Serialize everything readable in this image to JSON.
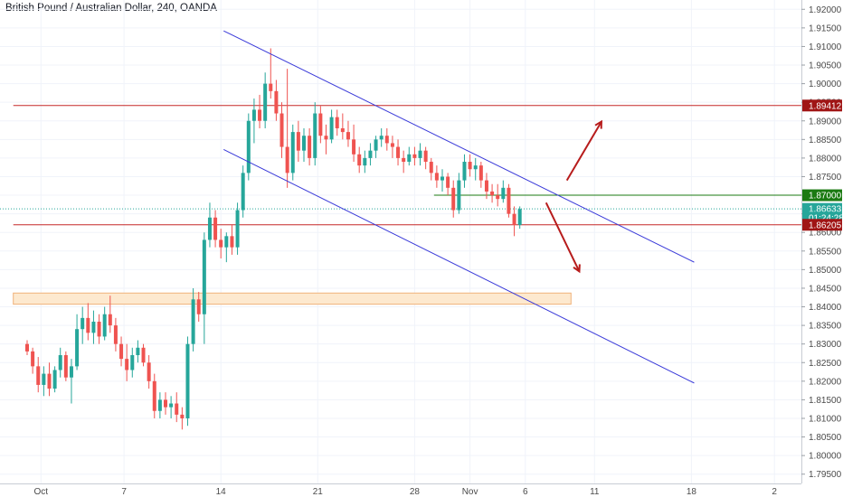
{
  "header": {
    "title": "British Pound / Australian Dollar, 240, OANDA"
  },
  "colors": {
    "up": "#26a69a",
    "down": "#ef5350",
    "channel": "#3b3bd9",
    "resistance": "#c62828",
    "support_green": "#1b7a12",
    "zone_fill": "#fde9cf",
    "zone_stroke": "#f0b27a",
    "arrow": "#b71c1c",
    "grid": "#f0f3fa",
    "axis_text": "#4a4a4a"
  },
  "chart_data": {
    "type": "candlestick",
    "symbol": "GBPAUD",
    "interval": "240",
    "source": "OANDA",
    "ylim": [
      1.7925,
      1.9225
    ],
    "y_ticks": [
      "1.92000",
      "1.91500",
      "1.91000",
      "1.90500",
      "1.90000",
      "1.89500",
      "1.89000",
      "1.88500",
      "1.88000",
      "1.87500",
      "1.87000",
      "1.86500",
      "1.86000",
      "1.85500",
      "1.85000",
      "1.84500",
      "1.84000",
      "1.83500",
      "1.83000",
      "1.82500",
      "1.82000",
      "1.81500",
      "1.81000",
      "1.80500",
      "1.80000",
      "1.79500"
    ],
    "x_ticks": [
      {
        "label": "Oct",
        "day": 1
      },
      {
        "label": "7",
        "day": 7
      },
      {
        "label": "14",
        "day": 14
      },
      {
        "label": "21",
        "day": 21
      },
      {
        "label": "28",
        "day": 28
      },
      {
        "label": "Nov",
        "day": 32
      },
      {
        "label": "6",
        "day": 36
      },
      {
        "label": "11",
        "day": 41
      },
      {
        "label": "18",
        "day": 48
      },
      {
        "label": "2",
        "day": 54
      }
    ],
    "price_labels": [
      {
        "value": 1.89412,
        "text": "1.89412",
        "color": "#a01515"
      },
      {
        "value": 1.87,
        "text": "1.87000",
        "color": "#1b7a12"
      },
      {
        "value": 1.86633,
        "text": "1.86633",
        "color": "#26a69a"
      },
      {
        "value": 1.864,
        "text": "01:24:28",
        "color": "#26a69a"
      },
      {
        "value": 1.86205,
        "text": "1.86205",
        "color": "#a01515"
      }
    ],
    "h_lines": [
      {
        "value": 1.89412,
        "color": "#c62828",
        "from_day": -1
      },
      {
        "value": 1.86205,
        "color": "#c62828",
        "from_day": -1
      },
      {
        "value": 1.87,
        "color": "#1b7a12",
        "from_day": 29.4
      }
    ],
    "current_price": 1.86633,
    "zone": {
      "from_day": -1,
      "to_day": 39.3,
      "low": 1.8407,
      "high": 1.8437
    },
    "channel_upper": [
      [
        14.2,
        1.9142
      ],
      [
        48.2,
        1.852
      ]
    ],
    "channel_lower": [
      [
        14.2,
        1.8823
      ],
      [
        48.2,
        1.8195
      ]
    ],
    "arrows": [
      {
        "from": [
          39.0,
          1.874
        ],
        "to": [
          41.5,
          1.8898
        ]
      },
      {
        "from": [
          37.5,
          1.868
        ],
        "to": [
          39.9,
          1.8495
        ]
      }
    ],
    "candles": [
      {
        "day": 0.0,
        "o": 1.83,
        "h": 1.831,
        "l": 1.827,
        "c": 1.828
      },
      {
        "day": 0.4,
        "o": 1.828,
        "h": 1.829,
        "l": 1.822,
        "c": 1.824
      },
      {
        "day": 0.8,
        "o": 1.824,
        "h": 1.8265,
        "l": 1.817,
        "c": 1.819
      },
      {
        "day": 1.2,
        "o": 1.819,
        "h": 1.824,
        "l": 1.816,
        "c": 1.822
      },
      {
        "day": 1.6,
        "o": 1.822,
        "h": 1.825,
        "l": 1.816,
        "c": 1.818
      },
      {
        "day": 2.0,
        "o": 1.818,
        "h": 1.824,
        "l": 1.817,
        "c": 1.823
      },
      {
        "day": 2.4,
        "o": 1.823,
        "h": 1.829,
        "l": 1.821,
        "c": 1.827
      },
      {
        "day": 2.8,
        "o": 1.827,
        "h": 1.828,
        "l": 1.82,
        "c": 1.821
      },
      {
        "day": 3.2,
        "o": 1.821,
        "h": 1.826,
        "l": 1.814,
        "c": 1.824
      },
      {
        "day": 3.6,
        "o": 1.824,
        "h": 1.838,
        "l": 1.823,
        "c": 1.834
      },
      {
        "day": 4.0,
        "o": 1.834,
        "h": 1.84,
        "l": 1.83,
        "c": 1.837
      },
      {
        "day": 4.4,
        "o": 1.837,
        "h": 1.841,
        "l": 1.831,
        "c": 1.833
      },
      {
        "day": 4.8,
        "o": 1.833,
        "h": 1.839,
        "l": 1.83,
        "c": 1.836
      },
      {
        "day": 5.2,
        "o": 1.836,
        "h": 1.838,
        "l": 1.83,
        "c": 1.832
      },
      {
        "day": 5.6,
        "o": 1.832,
        "h": 1.84,
        "l": 1.831,
        "c": 1.838
      },
      {
        "day": 6.0,
        "o": 1.838,
        "h": 1.843,
        "l": 1.833,
        "c": 1.835
      },
      {
        "day": 6.4,
        "o": 1.835,
        "h": 1.837,
        "l": 1.828,
        "c": 1.83
      },
      {
        "day": 6.8,
        "o": 1.83,
        "h": 1.832,
        "l": 1.824,
        "c": 1.826
      },
      {
        "day": 7.2,
        "o": 1.826,
        "h": 1.83,
        "l": 1.82,
        "c": 1.823
      },
      {
        "day": 7.6,
        "o": 1.823,
        "h": 1.829,
        "l": 1.821,
        "c": 1.827
      },
      {
        "day": 8.0,
        "o": 1.827,
        "h": 1.831,
        "l": 1.825,
        "c": 1.829
      },
      {
        "day": 8.4,
        "o": 1.829,
        "h": 1.83,
        "l": 1.824,
        "c": 1.825
      },
      {
        "day": 8.8,
        "o": 1.825,
        "h": 1.827,
        "l": 1.818,
        "c": 1.82
      },
      {
        "day": 9.2,
        "o": 1.82,
        "h": 1.822,
        "l": 1.81,
        "c": 1.812
      },
      {
        "day": 9.6,
        "o": 1.812,
        "h": 1.817,
        "l": 1.81,
        "c": 1.815
      },
      {
        "day": 10.0,
        "o": 1.815,
        "h": 1.817,
        "l": 1.811,
        "c": 1.813
      },
      {
        "day": 10.4,
        "o": 1.813,
        "h": 1.816,
        "l": 1.81,
        "c": 1.814
      },
      {
        "day": 10.8,
        "o": 1.814,
        "h": 1.817,
        "l": 1.809,
        "c": 1.811
      },
      {
        "day": 11.2,
        "o": 1.811,
        "h": 1.813,
        "l": 1.807,
        "c": 1.81
      },
      {
        "day": 11.6,
        "o": 1.81,
        "h": 1.832,
        "l": 1.808,
        "c": 1.83
      },
      {
        "day": 12.0,
        "o": 1.83,
        "h": 1.845,
        "l": 1.828,
        "c": 1.842
      },
      {
        "day": 12.4,
        "o": 1.842,
        "h": 1.844,
        "l": 1.836,
        "c": 1.838
      },
      {
        "day": 12.8,
        "o": 1.838,
        "h": 1.86,
        "l": 1.83,
        "c": 1.858
      },
      {
        "day": 13.2,
        "o": 1.858,
        "h": 1.868,
        "l": 1.856,
        "c": 1.864
      },
      {
        "day": 13.6,
        "o": 1.864,
        "h": 1.866,
        "l": 1.856,
        "c": 1.858
      },
      {
        "day": 14.0,
        "o": 1.858,
        "h": 1.861,
        "l": 1.853,
        "c": 1.856
      },
      {
        "day": 14.4,
        "o": 1.856,
        "h": 1.86,
        "l": 1.852,
        "c": 1.859
      },
      {
        "day": 14.8,
        "o": 1.859,
        "h": 1.862,
        "l": 1.854,
        "c": 1.856
      },
      {
        "day": 15.2,
        "o": 1.856,
        "h": 1.868,
        "l": 1.854,
        "c": 1.866
      },
      {
        "day": 15.6,
        "o": 1.866,
        "h": 1.878,
        "l": 1.864,
        "c": 1.876
      },
      {
        "day": 16.0,
        "o": 1.876,
        "h": 1.892,
        "l": 1.874,
        "c": 1.89
      },
      {
        "day": 16.4,
        "o": 1.89,
        "h": 1.896,
        "l": 1.884,
        "c": 1.893
      },
      {
        "day": 16.8,
        "o": 1.893,
        "h": 1.897,
        "l": 1.888,
        "c": 1.89
      },
      {
        "day": 17.2,
        "o": 1.89,
        "h": 1.903,
        "l": 1.888,
        "c": 1.9
      },
      {
        "day": 17.6,
        "o": 1.9,
        "h": 1.9095,
        "l": 1.896,
        "c": 1.898
      },
      {
        "day": 18.0,
        "o": 1.898,
        "h": 1.901,
        "l": 1.89,
        "c": 1.892
      },
      {
        "day": 18.4,
        "o": 1.892,
        "h": 1.895,
        "l": 1.88,
        "c": 1.883
      },
      {
        "day": 18.8,
        "o": 1.883,
        "h": 1.904,
        "l": 1.872,
        "c": 1.876
      },
      {
        "day": 19.2,
        "o": 1.876,
        "h": 1.889,
        "l": 1.874,
        "c": 1.887
      },
      {
        "day": 19.6,
        "o": 1.887,
        "h": 1.89,
        "l": 1.879,
        "c": 1.882
      },
      {
        "day": 20.0,
        "o": 1.882,
        "h": 1.888,
        "l": 1.879,
        "c": 1.886
      },
      {
        "day": 20.4,
        "o": 1.886,
        "h": 1.888,
        "l": 1.878,
        "c": 1.88
      },
      {
        "day": 20.8,
        "o": 1.88,
        "h": 1.895,
        "l": 1.878,
        "c": 1.892
      },
      {
        "day": 21.2,
        "o": 1.892,
        "h": 1.894,
        "l": 1.884,
        "c": 1.886
      },
      {
        "day": 21.6,
        "o": 1.886,
        "h": 1.889,
        "l": 1.881,
        "c": 1.885
      },
      {
        "day": 22.0,
        "o": 1.885,
        "h": 1.893,
        "l": 1.884,
        "c": 1.891
      },
      {
        "day": 22.4,
        "o": 1.891,
        "h": 1.893,
        "l": 1.886,
        "c": 1.888
      },
      {
        "day": 22.8,
        "o": 1.888,
        "h": 1.892,
        "l": 1.885,
        "c": 1.887
      },
      {
        "day": 23.2,
        "o": 1.887,
        "h": 1.89,
        "l": 1.883,
        "c": 1.885
      },
      {
        "day": 23.6,
        "o": 1.885,
        "h": 1.889,
        "l": 1.879,
        "c": 1.881
      },
      {
        "day": 24.0,
        "o": 1.881,
        "h": 1.883,
        "l": 1.876,
        "c": 1.878
      },
      {
        "day": 24.4,
        "o": 1.878,
        "h": 1.882,
        "l": 1.876,
        "c": 1.88
      },
      {
        "day": 24.8,
        "o": 1.88,
        "h": 1.884,
        "l": 1.878,
        "c": 1.882
      },
      {
        "day": 25.2,
        "o": 1.882,
        "h": 1.886,
        "l": 1.88,
        "c": 1.885
      },
      {
        "day": 25.6,
        "o": 1.885,
        "h": 1.888,
        "l": 1.883,
        "c": 1.886
      },
      {
        "day": 26.0,
        "o": 1.886,
        "h": 1.888,
        "l": 1.882,
        "c": 1.884
      },
      {
        "day": 26.4,
        "o": 1.884,
        "h": 1.886,
        "l": 1.88,
        "c": 1.883
      },
      {
        "day": 26.8,
        "o": 1.883,
        "h": 1.885,
        "l": 1.878,
        "c": 1.88
      },
      {
        "day": 27.2,
        "o": 1.88,
        "h": 1.882,
        "l": 1.876,
        "c": 1.879
      },
      {
        "day": 27.6,
        "o": 1.879,
        "h": 1.883,
        "l": 1.878,
        "c": 1.881
      },
      {
        "day": 28.0,
        "o": 1.881,
        "h": 1.883,
        "l": 1.878,
        "c": 1.88
      },
      {
        "day": 28.4,
        "o": 1.88,
        "h": 1.884,
        "l": 1.878,
        "c": 1.882
      },
      {
        "day": 28.8,
        "o": 1.882,
        "h": 1.883,
        "l": 1.877,
        "c": 1.879
      },
      {
        "day": 29.2,
        "o": 1.879,
        "h": 1.88,
        "l": 1.874,
        "c": 1.876
      },
      {
        "day": 29.6,
        "o": 1.876,
        "h": 1.878,
        "l": 1.872,
        "c": 1.874
      },
      {
        "day": 30.0,
        "o": 1.874,
        "h": 1.877,
        "l": 1.871,
        "c": 1.875
      },
      {
        "day": 30.4,
        "o": 1.875,
        "h": 1.876,
        "l": 1.87,
        "c": 1.872
      },
      {
        "day": 30.8,
        "o": 1.872,
        "h": 1.874,
        "l": 1.864,
        "c": 1.866
      },
      {
        "day": 31.2,
        "o": 1.866,
        "h": 1.876,
        "l": 1.865,
        "c": 1.874
      },
      {
        "day": 31.6,
        "o": 1.874,
        "h": 1.881,
        "l": 1.872,
        "c": 1.879
      },
      {
        "day": 32.0,
        "o": 1.879,
        "h": 1.881,
        "l": 1.875,
        "c": 1.877
      },
      {
        "day": 32.4,
        "o": 1.877,
        "h": 1.88,
        "l": 1.874,
        "c": 1.878
      },
      {
        "day": 32.8,
        "o": 1.878,
        "h": 1.879,
        "l": 1.872,
        "c": 1.874
      },
      {
        "day": 33.2,
        "o": 1.874,
        "h": 1.876,
        "l": 1.869,
        "c": 1.871
      },
      {
        "day": 33.6,
        "o": 1.871,
        "h": 1.873,
        "l": 1.868,
        "c": 1.87
      },
      {
        "day": 34.0,
        "o": 1.87,
        "h": 1.873,
        "l": 1.867,
        "c": 1.869
      },
      {
        "day": 34.4,
        "o": 1.869,
        "h": 1.874,
        "l": 1.868,
        "c": 1.872
      },
      {
        "day": 34.8,
        "o": 1.872,
        "h": 1.873,
        "l": 1.864,
        "c": 1.865
      },
      {
        "day": 35.2,
        "o": 1.865,
        "h": 1.867,
        "l": 1.859,
        "c": 1.862
      },
      {
        "day": 35.6,
        "o": 1.862,
        "h": 1.867,
        "l": 1.861,
        "c": 1.8663
      }
    ]
  }
}
